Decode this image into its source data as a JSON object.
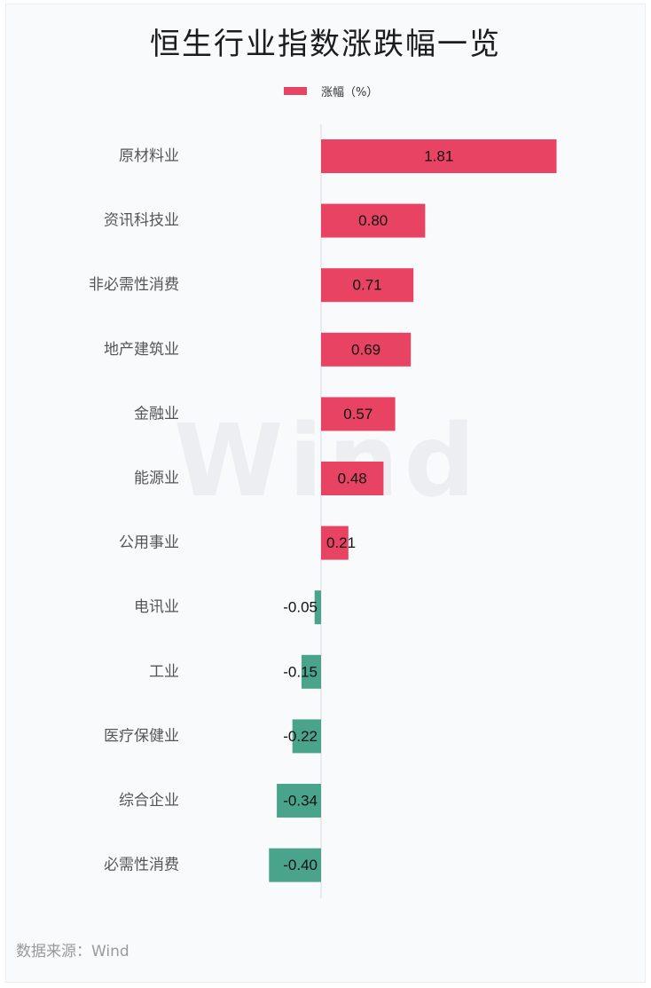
{
  "title": "恒生行业指数涨跌幅一览",
  "source": "数据来源：Wind",
  "watermark": "Wind",
  "colors": {
    "positive": "#e84362",
    "negative": "#4aa38b",
    "axis": "#d9dbe0",
    "label": "#555555",
    "value": "#111111"
  },
  "chart_data": {
    "type": "bar",
    "orientation": "horizontal",
    "categories": [
      "原材料业",
      "资讯科技业",
      "非必需性消费",
      "地产建筑业",
      "金融业",
      "能源业",
      "公用事业",
      "电讯业",
      "工业",
      "医疗保健业",
      "综合企业",
      "必需性消费"
    ],
    "series": [
      {
        "name": "涨幅（%）",
        "values": [
          1.81,
          0.8,
          0.71,
          0.69,
          0.57,
          0.48,
          0.21,
          -0.05,
          -0.15,
          -0.22,
          -0.34,
          -0.4
        ]
      }
    ],
    "value_labels": [
      "1.81",
      "0.80",
      "0.71",
      "0.69",
      "0.57",
      "0.48",
      "0.21",
      "-0.05",
      "-0.15",
      "-0.22",
      "-0.34",
      "-0.40"
    ],
    "xlim": [
      -0.4,
      1.81
    ],
    "grid": false,
    "legend_position": "top-center"
  }
}
